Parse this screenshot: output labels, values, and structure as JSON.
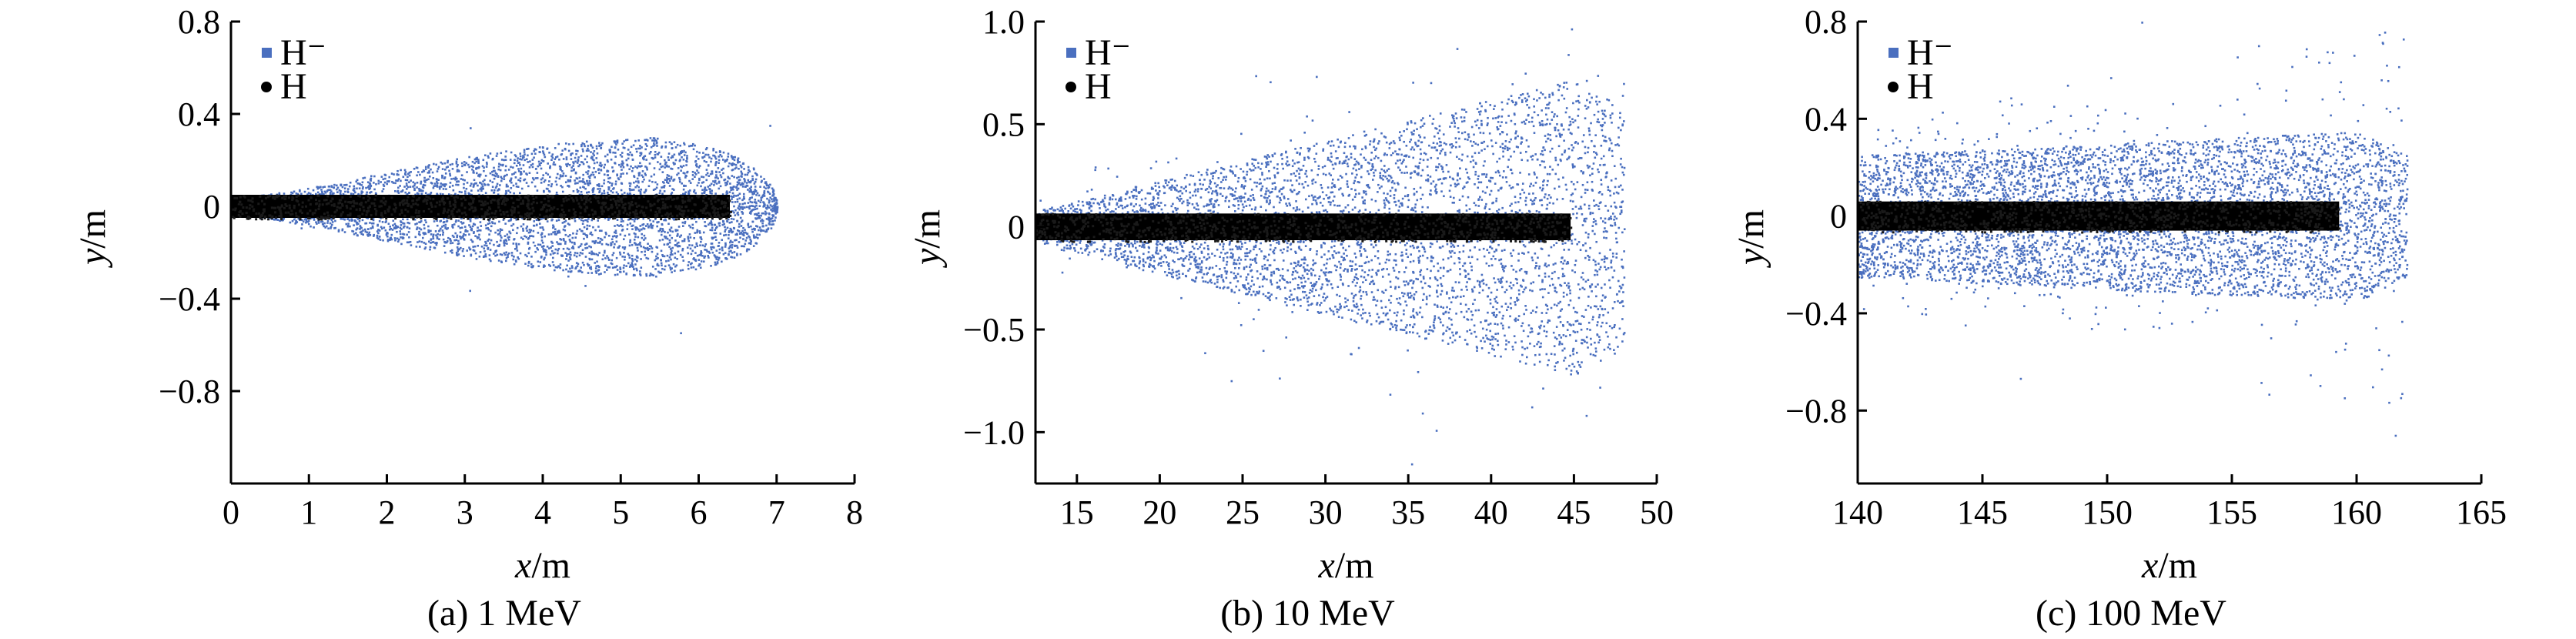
{
  "chart_data": [
    {
      "type": "scatter",
      "caption": "(a) 1 MeV",
      "xlabel": "x/m",
      "ylabel": "y/m",
      "xlim": [
        0,
        8
      ],
      "ylim": [
        -1.2,
        0.8
      ],
      "xticks": [
        0,
        1,
        2,
        3,
        4,
        5,
        6,
        7,
        8
      ],
      "xtick_labels": [
        "0",
        "1",
        "2",
        "3",
        "4",
        "5",
        "6",
        "7",
        "8"
      ],
      "yticks": [
        0.8,
        0.4,
        0,
        -0.4,
        -0.8
      ],
      "ytick_labels": [
        "0.8",
        "0.4",
        "0",
        "−0.4",
        "−0.8"
      ],
      "legend": [
        {
          "label": "H⁻",
          "marker": "square",
          "color": "#4a6fbf"
        },
        {
          "label": "H",
          "marker": "circle",
          "color": "#000000"
        }
      ],
      "legend_position": "top-left",
      "series": [
        {
          "name": "H⁻",
          "color": "#4a6fbf",
          "shape": "teardrop",
          "x_start": 0.0,
          "x_end": 7.0,
          "x_peak": 5.5,
          "half_width_start": 0.04,
          "half_width_peak": 0.3,
          "half_width_end": 0.18
        },
        {
          "name": "H",
          "color": "#000000",
          "shape": "band",
          "x_start": 0.0,
          "x_end": 6.4,
          "half_width": 0.05
        }
      ]
    },
    {
      "type": "scatter",
      "caption": "(b) 10 MeV",
      "xlabel": "x/m",
      "ylabel": "y/m",
      "xlim": [
        12.5,
        50
      ],
      "ylim": [
        -1.25,
        1.0
      ],
      "xticks": [
        15,
        20,
        25,
        30,
        35,
        40,
        45,
        50
      ],
      "xtick_labels": [
        "15",
        "20",
        "25",
        "30",
        "35",
        "40",
        "45",
        "50"
      ],
      "yticks": [
        1.0,
        0.5,
        0,
        -0.5,
        -1.0
      ],
      "ytick_labels": [
        "1.0",
        "0.5",
        "0",
        "−0.5",
        "−1.0"
      ],
      "legend": [
        {
          "label": "H⁻",
          "marker": "square",
          "color": "#4a6fbf"
        },
        {
          "label": "H",
          "marker": "circle",
          "color": "#000000"
        }
      ],
      "legend_position": "top-left",
      "series": [
        {
          "name": "H⁻",
          "color": "#4a6fbf",
          "shape": "cone",
          "x_start": 12.5,
          "x_end": 48.0,
          "x_peak": 45.0,
          "half_width_start": 0.08,
          "half_width_peak": 0.72,
          "half_width_end": 0.6
        },
        {
          "name": "H",
          "color": "#000000",
          "shape": "band",
          "x_start": 12.5,
          "x_end": 44.8,
          "half_width": 0.065
        }
      ]
    },
    {
      "type": "scatter",
      "caption": "(c) 100 MeV",
      "xlabel": "x/m",
      "ylabel": "y/m",
      "xlim": [
        140,
        165
      ],
      "ylim": [
        -1.1,
        0.8
      ],
      "xticks": [
        140,
        145,
        150,
        155,
        160,
        165
      ],
      "xtick_labels": [
        "140",
        "145",
        "150",
        "155",
        "160",
        "165"
      ],
      "yticks": [
        0.8,
        0.4,
        0,
        -0.4,
        -0.8
      ],
      "ytick_labels": [
        "0.8",
        "0.4",
        "0",
        "−0.4",
        "−0.8"
      ],
      "legend": [
        {
          "label": "H⁻",
          "marker": "square",
          "color": "#4a6fbf"
        },
        {
          "label": "H",
          "marker": "circle",
          "color": "#000000"
        }
      ],
      "legend_position": "top-left",
      "series": [
        {
          "name": "H⁻",
          "color": "#4a6fbf",
          "shape": "slab",
          "x_start": 140.0,
          "x_end": 162.0,
          "x_peak": 160.0,
          "half_width_start": 0.25,
          "half_width_peak": 0.35,
          "half_width_end": 0.25
        },
        {
          "name": "H",
          "color": "#000000",
          "shape": "band",
          "x_start": 140.0,
          "x_end": 159.3,
          "half_width": 0.06
        }
      ]
    }
  ]
}
